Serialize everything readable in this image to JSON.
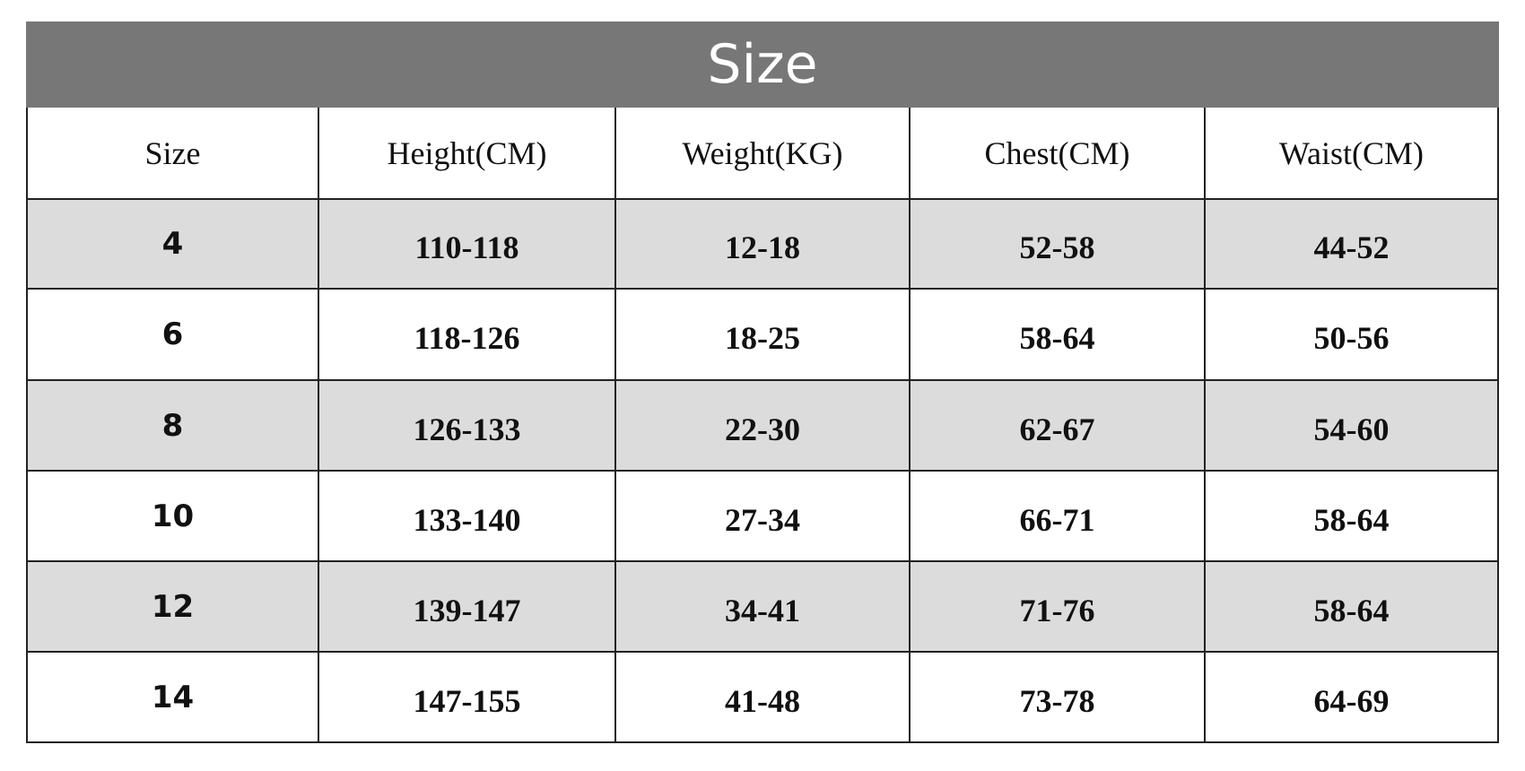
{
  "table": {
    "title": "Size",
    "header": [
      "Size",
      "Height(CM)",
      "Weight(KG)",
      "Chest(CM)",
      "Waist(CM)"
    ],
    "rows": [
      [
        "4",
        "110-118",
        "12-18",
        "52-58",
        "44-52"
      ],
      [
        "6",
        "118-126",
        "18-25",
        "58-64",
        "50-56"
      ],
      [
        "8",
        "126-133",
        "22-30",
        "62-67",
        "54-60"
      ],
      [
        "10",
        "133-140",
        "27-34",
        "66-71",
        "58-64"
      ],
      [
        "12",
        "139-147",
        "34-41",
        "71-76",
        "58-64"
      ],
      [
        "14",
        "147-155",
        "41-48",
        "73-78",
        "64-69"
      ]
    ]
  }
}
